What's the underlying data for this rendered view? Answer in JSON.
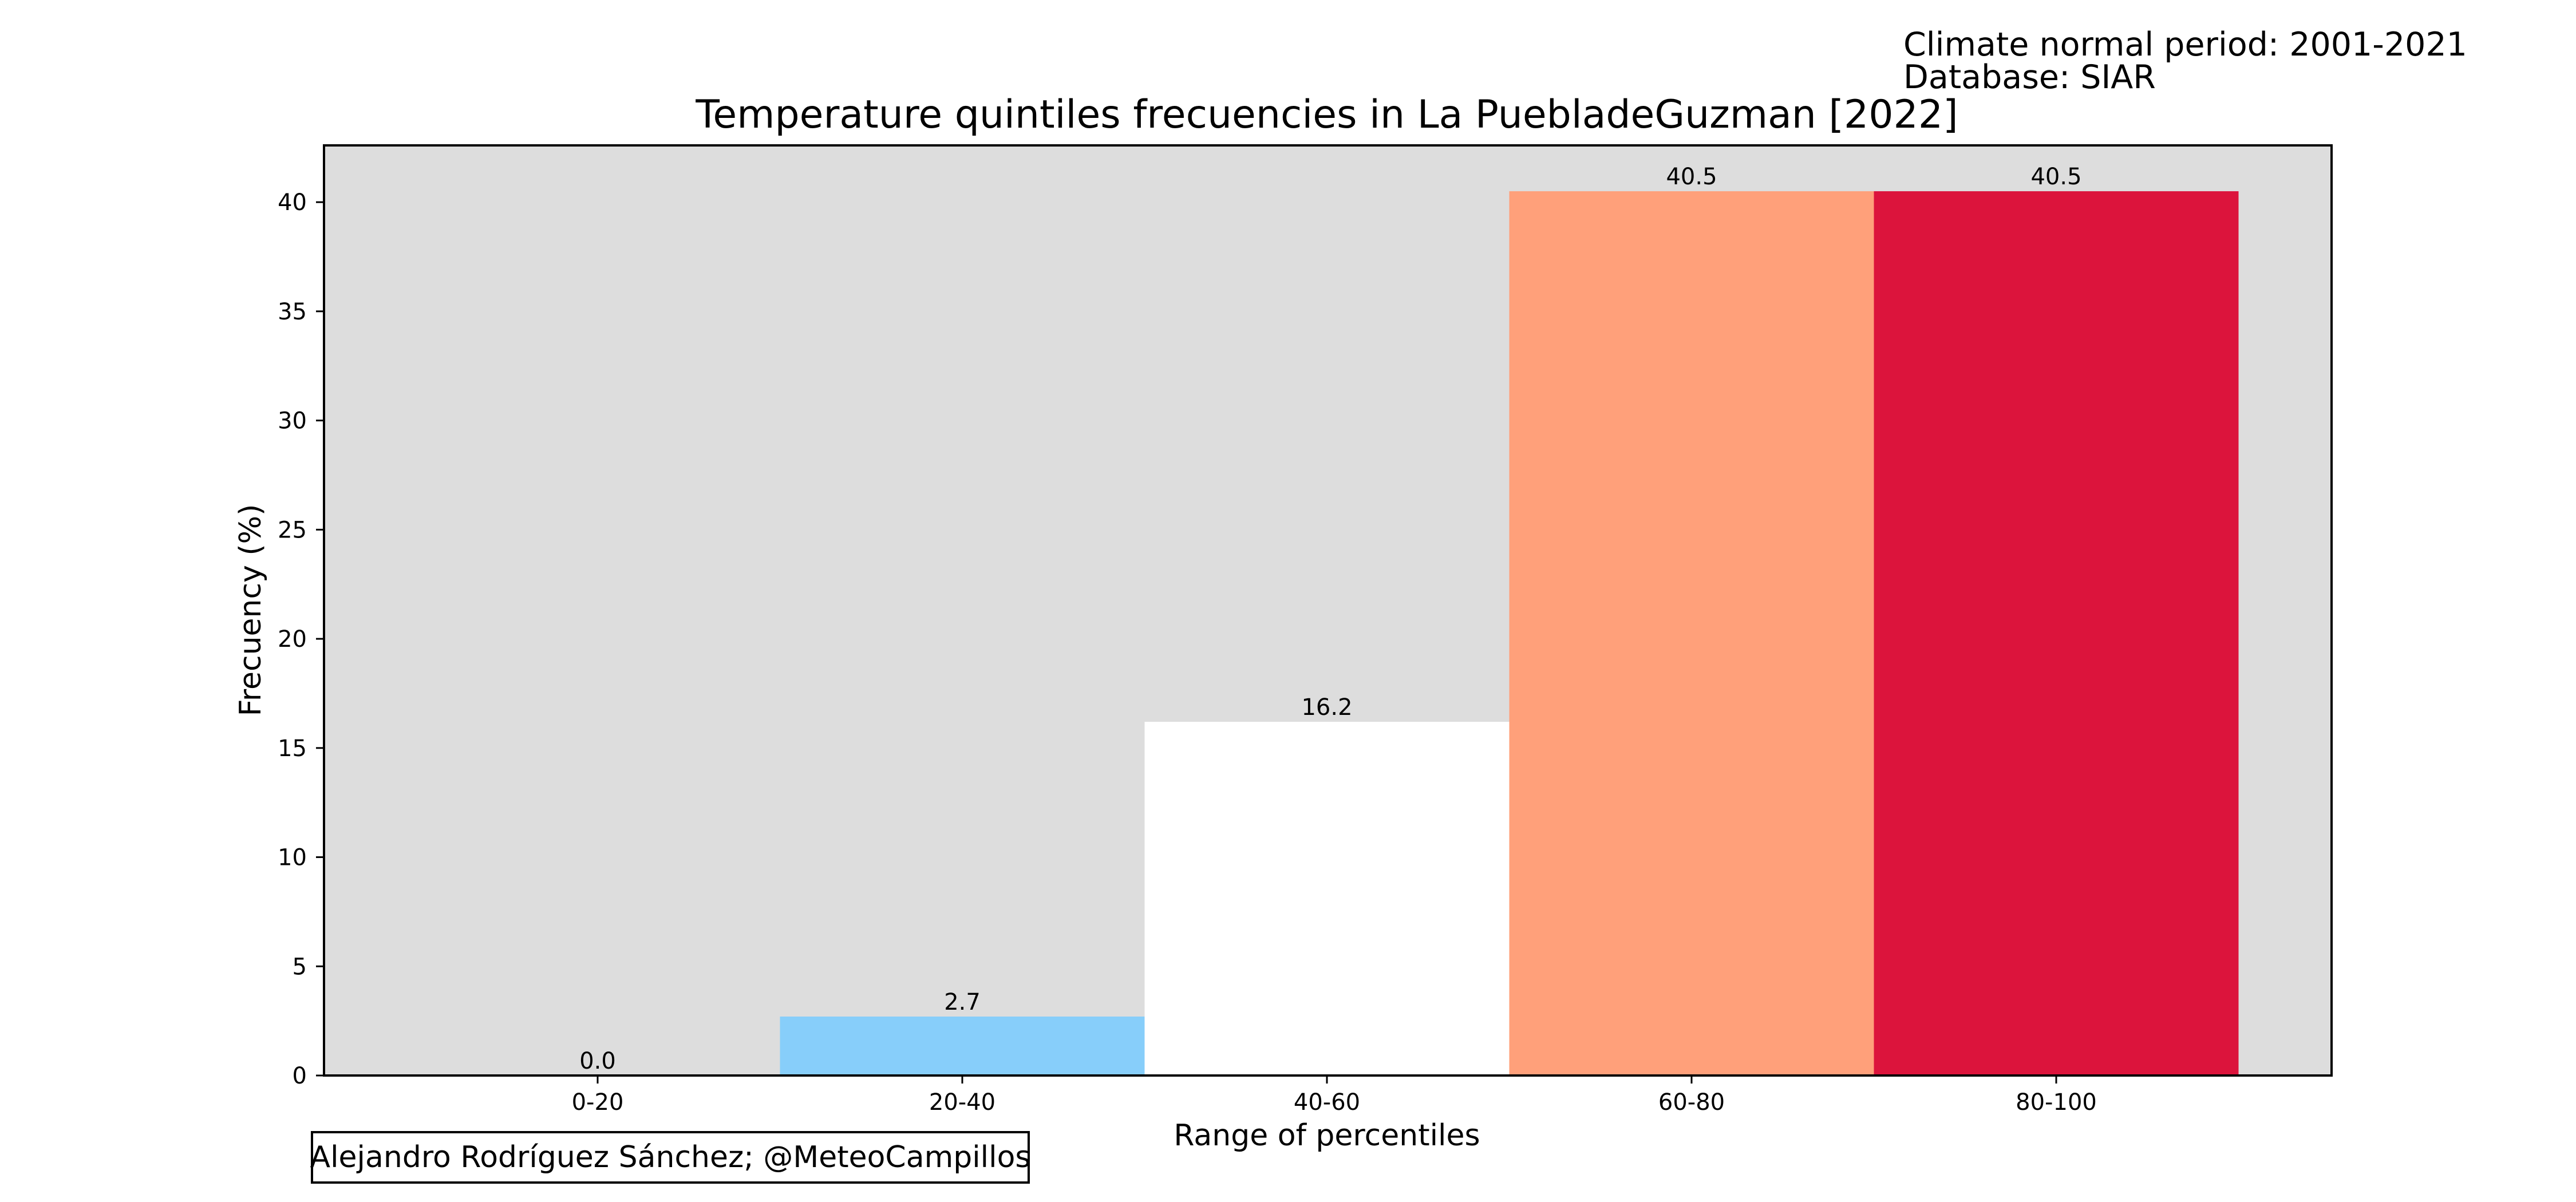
{
  "meta": {
    "period": "Climate normal period: 2001-2021",
    "database": "Database: SIAR"
  },
  "credit": "Alejandro Rodríguez Sánchez; @MeteoCampillos",
  "chart_data": {
    "type": "bar",
    "title": "Temperature quintiles frecuencies in La PuebladeGuzman [2022]",
    "xlabel": "Range of percentiles",
    "ylabel": "Frecuency (%)",
    "categories": [
      "0-20",
      "20-40",
      "40-60",
      "60-80",
      "80-100"
    ],
    "values": [
      0.0,
      2.7,
      16.2,
      40.5,
      40.5
    ],
    "value_labels": [
      "0.0",
      "2.7",
      "16.2",
      "40.5",
      "40.5"
    ],
    "bar_colors": [
      "#87CEFA",
      "#87CEFA",
      "#FFFFFF",
      "#FFA07A",
      "#DC143C"
    ],
    "background_color": "#DDDDDD",
    "ylim": [
      0,
      42.6
    ],
    "yticks": [
      0,
      5,
      10,
      15,
      20,
      25,
      30,
      35,
      40
    ],
    "grid": false,
    "legend": "none"
  }
}
